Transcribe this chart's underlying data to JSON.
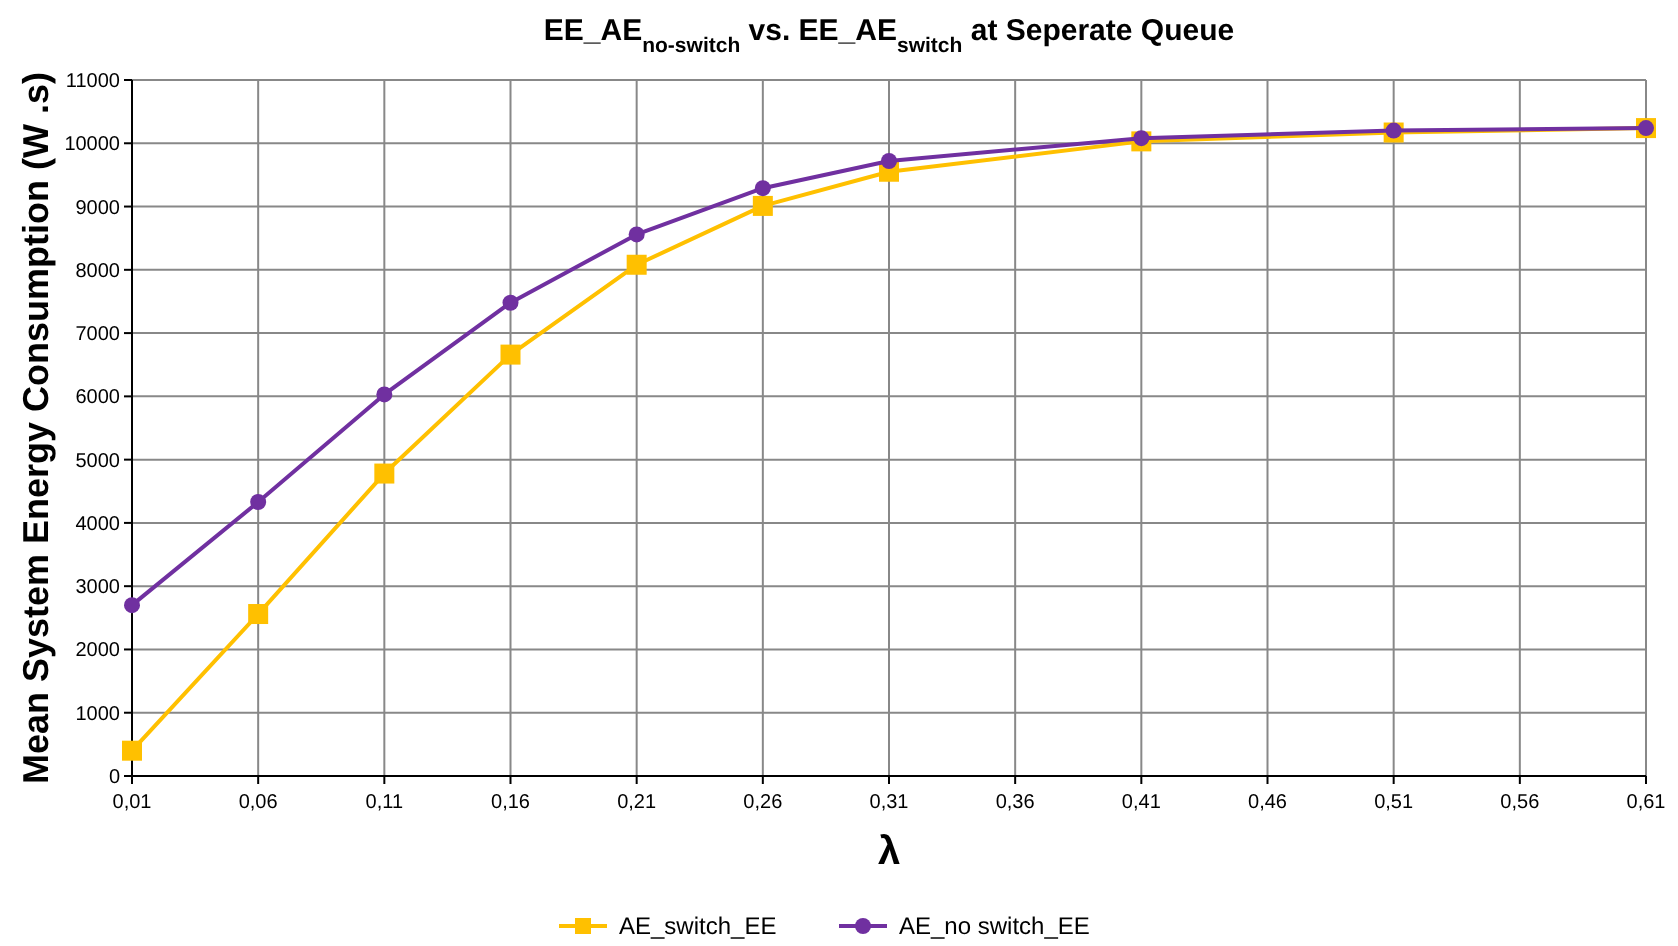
{
  "chart_data": {
    "type": "line",
    "title": "EE_AE$_{no-switch}$ vs. EE_AE$_{switch}$ at Seperate Queue",
    "xlabel": "λ",
    "ylabel": "Mean System Energy Consumption (W .s)",
    "x": [
      0.01,
      0.06,
      0.11,
      0.16,
      0.21,
      0.26,
      0.31,
      0.41,
      0.51,
      0.61
    ],
    "series": [
      {
        "name": "AE_switch_EE",
        "color": "#ffc000",
        "marker": "square",
        "values": [
          400,
          2560,
          4780,
          6660,
          8080,
          9010,
          9550,
          10030,
          10170,
          10240
        ]
      },
      {
        "name": "AE_no switch_EE",
        "color": "#7030a0",
        "marker": "circle",
        "values": [
          2700,
          4330,
          6030,
          7480,
          8560,
          9290,
          9720,
          10080,
          10200,
          10240
        ]
      }
    ],
    "xlim": [
      0.01,
      0.61
    ],
    "xticks": [
      {
        "value": 0.01,
        "label": "0,01"
      },
      {
        "value": 0.06,
        "label": "0,06"
      },
      {
        "value": 0.11,
        "label": "0,11"
      },
      {
        "value": 0.16,
        "label": "0,16"
      },
      {
        "value": 0.21,
        "label": "0,21"
      },
      {
        "value": 0.26,
        "label": "0,26"
      },
      {
        "value": 0.31,
        "label": "0,31"
      },
      {
        "value": 0.36,
        "label": "0,36"
      },
      {
        "value": 0.41,
        "label": "0,41"
      },
      {
        "value": 0.46,
        "label": "0,46"
      },
      {
        "value": 0.51,
        "label": "0,51"
      },
      {
        "value": 0.56,
        "label": "0,56"
      },
      {
        "value": 0.61,
        "label": "0,61"
      }
    ],
    "ylim": [
      0,
      11000
    ],
    "yticks": [
      0,
      1000,
      2000,
      3000,
      4000,
      5000,
      6000,
      7000,
      8000,
      9000,
      10000,
      11000
    ],
    "grid": true,
    "legend": "bottom",
    "line_style": "solid"
  }
}
